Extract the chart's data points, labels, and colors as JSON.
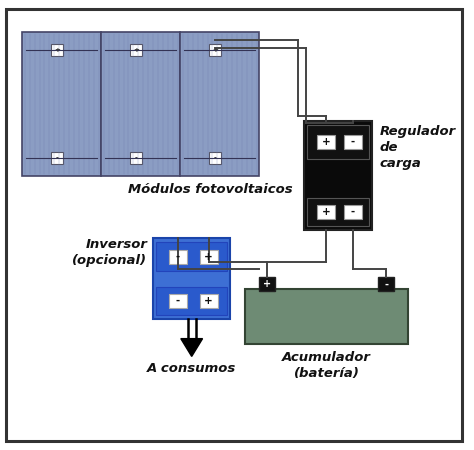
{
  "bg_color": "#ffffff",
  "border_color": "#333333",
  "solar_panel_color": "#8b9dc3",
  "solar_panel_border": "#444466",
  "solar_panel_line_color": "#6677aa",
  "regulator_color": "#0a0a0a",
  "regulator_label": "Regulador\nde\ncarga",
  "inversor_color": "#3d6fd4",
  "inversor_label": "Inversor\n(opcional)",
  "battery_color": "#6e8b74",
  "battery_label": "Acumulador\n(batería)",
  "modulos_label": "Módulos fotovoltaicos",
  "consumos_label": "A consumos",
  "wire_color": "#444444",
  "wire_lw": 1.4,
  "terminal_bg": "#ffffff",
  "terminal_color": "#111111"
}
